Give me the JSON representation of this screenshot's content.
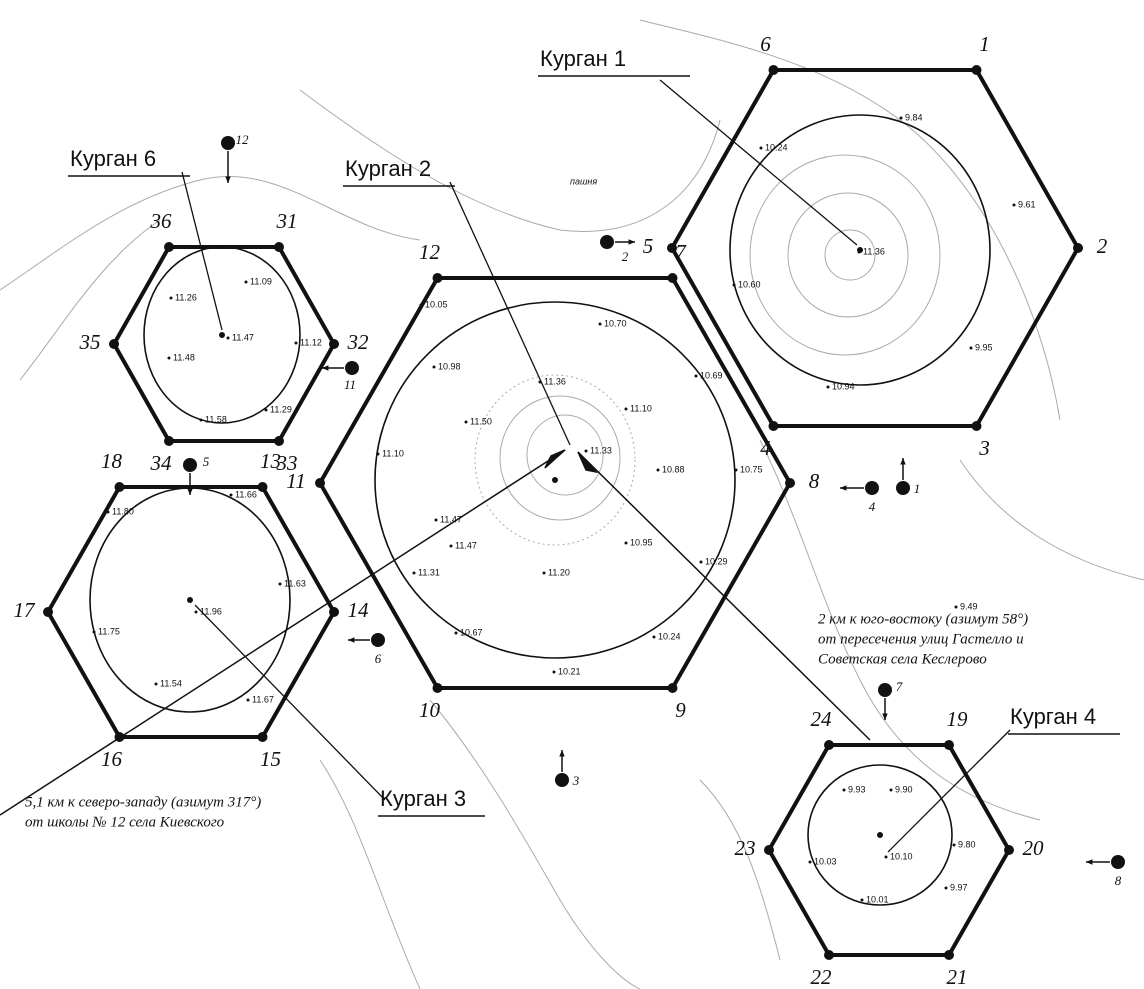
{
  "plan": {
    "mounds": [
      {
        "label": "Курган 1",
        "vertices": [
          "6",
          "1",
          "2",
          "3",
          "4",
          "5"
        ]
      },
      {
        "label": "Курган 2",
        "vertices": [
          "12",
          "7",
          "8",
          "9",
          "10",
          "11"
        ]
      },
      {
        "label": "Курган 6",
        "vertices": [
          "36",
          "31",
          "32",
          "33",
          "34",
          "35"
        ]
      },
      {
        "label": "Курган 3",
        "vertices": [
          "18",
          "13",
          "14",
          "15",
          "16",
          "17"
        ]
      },
      {
        "label": "Курган 4",
        "vertices": [
          "24",
          "19",
          "20",
          "21",
          "22",
          "23"
        ]
      }
    ],
    "elevations": [
      "9.84",
      "10.24",
      "9.61",
      "11.36",
      "10.60",
      "9.95",
      "10.94",
      "10.05",
      "10.70",
      "10.98",
      "10.69",
      "11.36",
      "11.10",
      "11.50",
      "11.33",
      "11.10",
      "10.88",
      "10.75",
      "11.47",
      "11.47",
      "10.95",
      "10.29",
      "11.31",
      "11.20",
      "10.67",
      "10.24",
      "10.21",
      "11.09",
      "11.26",
      "11.47",
      "11.12",
      "11.48",
      "11.29",
      "11.58",
      "11.66",
      "11.80",
      "11.63",
      "11.96",
      "11.75",
      "11.54",
      "11.67",
      "9.93",
      "9.90",
      "9.80",
      "10.03",
      "10.10",
      "9.97",
      "10.01",
      "9.49"
    ],
    "field_label": "пашня",
    "markers": [
      "12",
      "2",
      "11",
      "5",
      "6",
      "3",
      "4",
      "1",
      "7",
      "8"
    ],
    "annotations": [
      {
        "lines": [
          "2 км к юго-востоку (азимут 58°)",
          "от пересечения улиц Гастелло и",
          "Советская села Кеслерово"
        ]
      },
      {
        "lines": [
          "5,1 км к северо-западу (азимут 317°)",
          "от школы № 12 села Киевского"
        ]
      }
    ]
  }
}
